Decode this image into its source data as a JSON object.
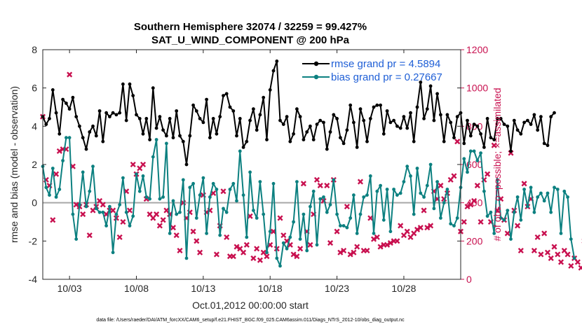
{
  "chart_data": {
    "type": "line",
    "title": "Southern Hemisphere 32074 / 32259 = 99.427%",
    "subtitle": "SAT_U_WIND_COMPONENT @ 200 hPa",
    "xlabel": "Oct.01,2012 00:00:00 start",
    "ylabel": "rmse and bias (model - observation)",
    "ylabel_right": "# of obs: o=possible; ×=assimilated",
    "footer": "data file: /Users/raeder/DAI/ATM_forcXX/CAM6_setup/f.e21.FHIST_BGC.f09_025.CAM6assim.011/Diags_NTrS_2012-10/obs_diag_output.nc",
    "xlim": [
      1.0,
      32.25
    ],
    "ylim": [
      -4,
      8
    ],
    "ylim_right": [
      0,
      1200
    ],
    "x_ticks": [
      3,
      8,
      13,
      18,
      23,
      28
    ],
    "x_tick_labels": [
      "10/03",
      "10/08",
      "10/13",
      "10/18",
      "10/23",
      "10/28"
    ],
    "y_ticks": [
      -4,
      -2,
      0,
      2,
      4,
      6,
      8
    ],
    "y_tick_labels": [
      "-4",
      "-2",
      "0",
      "2",
      "4",
      "6",
      "8"
    ],
    "y_ticks_right": [
      0,
      200,
      400,
      600,
      800,
      1000,
      1200
    ],
    "y_tick_labels_right": [
      "0",
      "200",
      "400",
      "600",
      "800",
      "1000",
      "1200"
    ],
    "grid": false,
    "legend_position": "top-right",
    "colors": {
      "rmse": "#000000",
      "bias": "#0c8080",
      "nobs": "#c8104f",
      "zero_line": "#a8a8a8",
      "legend_text": "#1f5fd6",
      "right_axis": "#c8104f"
    },
    "x_step": 0.25,
    "series": [
      {
        "name": "rmse grand pr = 4.5894",
        "axis": "left",
        "marker": "o",
        "values": [
          4.5,
          4.1,
          4.4,
          5.9,
          4.7,
          3.6,
          5.4,
          5.2,
          4.9,
          5.5,
          4.5,
          4.0,
          3.4,
          2.8,
          3.7,
          4.0,
          3.5,
          4.8,
          3.2,
          4.7,
          4.5,
          4.7,
          4.6,
          4.7,
          6.2,
          4.3,
          6.2,
          5.6,
          4.6,
          4.4,
          3.6,
          4.4,
          3.3,
          6.0,
          3.9,
          4.5,
          3.8,
          3.5,
          4.4,
          3.4,
          4.8,
          3.5,
          3.2,
          2.0,
          3.5,
          5.1,
          4.8,
          4.4,
          4.2,
          5.4,
          3.4,
          4.4,
          3.6,
          4.5,
          5.6,
          5.7,
          5.0,
          4.8,
          3.5,
          4.4,
          2.9,
          3.2,
          4.3,
          4.9,
          3.8,
          4.6,
          5.5,
          3.3,
          5.9,
          6.9,
          7.4,
          4.3,
          4.1,
          4.5,
          3.2,
          3.6,
          4.9,
          4.5,
          3.3,
          3.7,
          4.0,
          3.3,
          4.1,
          4.3,
          4.2,
          2.8,
          3.7,
          4.6,
          4.4,
          3.4,
          3.1,
          3.8,
          5.1,
          4.2,
          2.9,
          4.9,
          4.3,
          3.2,
          4.4,
          5.0,
          5.1,
          5.1,
          3.6,
          4.8,
          4.2,
          4.3,
          4.0,
          3.9,
          4.5,
          3.9,
          4.7,
          3.2,
          5.0,
          6.3,
          4.4,
          4.9,
          6.1,
          4.3,
          5.7,
          4.6,
          3.2,
          4.6,
          4.2,
          3.4,
          4.5,
          4.7,
          3.1,
          4.3,
          3.5,
          4.1,
          4.0,
          3.6,
          2.9,
          4.4,
          3.4,
          3.3,
          4.4,
          4.4,
          4.1,
          4.0,
          2.7,
          4.3,
          3.8,
          3.6,
          4.2,
          4.3,
          4.1,
          4.6,
          3.8,
          4.5,
          3.1,
          3.0,
          4.5,
          4.7
        ]
      },
      {
        "name": "bias grand pr = 0.27667",
        "axis": "left",
        "marker": "o",
        "values": [
          1.9,
          0.8,
          0.4,
          1.8,
          0.3,
          0.7,
          2.2,
          3.4,
          3.4,
          -0.6,
          -1.9,
          -0.1,
          1.6,
          -0.2,
          0.6,
          1.9,
          -0.3,
          -0.5,
          -0.5,
          -1.2,
          -0.2,
          -2.6,
          -0.6,
          -0.1,
          1.3,
          -0.5,
          -1.2,
          -0.7,
          1.5,
          0.6,
          1.4,
          0.3,
          0.2,
          2.4,
          3.3,
          0.2,
          0.3,
          3.1,
          -1.6,
          0.1,
          -0.6,
          -0.5,
          1.2,
          -2.9,
          0.8,
          1.0,
          -0.8,
          0.4,
          1.3,
          -1.6,
          0.3,
          1.0,
          0.7,
          -1.7,
          -0.3,
          -0.5,
          0.7,
          1.0,
          0.1,
          2.7,
          0.4,
          -1.8,
          1.6,
          -0.4,
          -0.8,
          1.1,
          -0.6,
          -2.6,
          -1.5,
          1.0,
          -2.9,
          -3.3,
          -2.1,
          -2.4,
          -1.8,
          -1.0,
          1.1,
          -1.9,
          -0.6,
          -2.5,
          -0.2,
          0.6,
          -2.2,
          0.2,
          0.3,
          -0.5,
          -0.1,
          1.2,
          -0.6,
          -1.2,
          -1.2,
          -1.3,
          -0.8,
          0.4,
          -1.6,
          -0.6,
          0.3,
          0.4,
          1.4,
          -1.6,
          0.6,
          0.9,
          -0.9,
          0.7,
          -1.5,
          0.7,
          0.4,
          0.5,
          1.1,
          1.9,
          1.4,
          -0.6,
          1.8,
          0.5,
          0.3,
          0.9,
          2.0,
          -0.3,
          1.1,
          -0.8,
          0.0,
          0.7,
          -1.1,
          -1.2,
          -0.8,
          0.8,
          2.3,
          1.6,
          2.7,
          2.7,
          2.2,
          2.6,
          0.6,
          -0.7,
          -0.5,
          -1.6,
          1.2,
          -0.8,
          -0.9,
          -0.4,
          -1.9,
          -0.5,
          0.3,
          -0.9,
          0.7,
          -0.2,
          0.8,
          -0.5,
          0.3,
          0.5,
          0.1,
          0.5,
          -0.5,
          0.8,
          0.7,
          -1.6,
          0.6,
          0.3,
          -1.9,
          -2.9
        ]
      },
      {
        "name": "assimilated",
        "axis": "right",
        "marker": "x",
        "values": [
          850,
          520,
          490,
          310,
          550,
          670,
          680,
          680,
          1070,
          590,
          390,
          380,
          340,
          390,
          230,
          360,
          380,
          410,
          390,
          340,
          360,
          360,
          320,
          220,
          300,
          460,
          360,
          600,
          550,
          580,
          600,
          420,
          340,
          320,
          340,
          280,
          310,
          360,
          340,
          270,
          230,
          150,
          400,
          320,
          350,
          250,
          200,
          140,
          440,
          350,
          360,
          450,
          130,
          280,
          460,
          220,
          120,
          120,
          170,
          160,
          140,
          180,
          330,
          110,
          160,
          100,
          140,
          120,
          180,
          250,
          160,
          320,
          230,
          200,
          180,
          130,
          120,
          160,
          500,
          250,
          180,
          340,
          520,
          490,
          410,
          490,
          190,
          520,
          250,
          140,
          150,
          380,
          130,
          140,
          170,
          510,
          150,
          150,
          320,
          210,
          220,
          170,
          180,
          180,
          190,
          200,
          200,
          280,
          230,
          250,
          220,
          240,
          260,
          270,
          360,
          270,
          280,
          460,
          420,
          490,
          420,
          450,
          520,
          540,
          720,
          250,
          300,
          380,
          390,
          410,
          490,
          300,
          520,
          550,
          300,
          700,
          360,
          420,
          310,
          240,
          660,
          360,
          280,
          150,
          500,
          380,
          420,
          150,
          220,
          130,
          240,
          140,
          110,
          170,
          130,
          90,
          150,
          130,
          70,
          110,
          90,
          60,
          200,
          0
        ]
      }
    ]
  }
}
